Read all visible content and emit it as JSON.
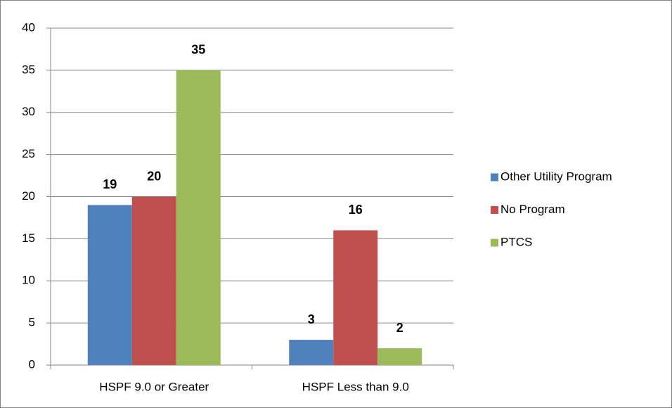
{
  "chart_data": {
    "type": "bar",
    "categories": [
      "HSPF 9.0 or Greater",
      "HSPF Less than 9.0"
    ],
    "series": [
      {
        "name": "Other Utility Program",
        "color": "#4f81bd",
        "values": [
          19,
          3
        ]
      },
      {
        "name": "No Program",
        "color": "#c0504d",
        "values": [
          20,
          16
        ]
      },
      {
        "name": "PTCS",
        "color": "#9bbb59",
        "values": [
          35,
          2
        ]
      }
    ],
    "ylim": [
      0,
      40
    ],
    "yticks": [
      0,
      5,
      10,
      15,
      20,
      25,
      30,
      35,
      40
    ],
    "grid": true,
    "legend": "right",
    "data_labels": true
  }
}
